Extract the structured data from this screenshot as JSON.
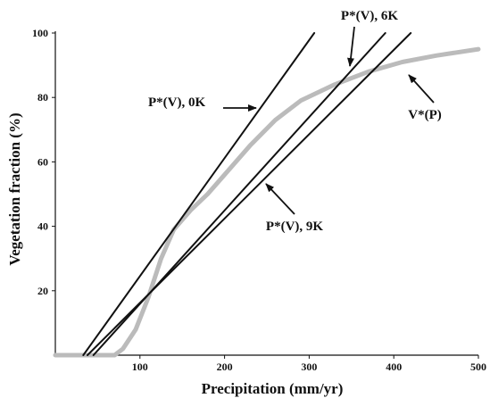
{
  "chart_data": {
    "type": "line",
    "xlabel": "Precipitation (mm/yr)",
    "ylabel": "Vegetation fraction (%)",
    "xlim": [
      0,
      500
    ],
    "ylim": [
      0,
      100
    ],
    "xticks": [
      "100",
      "200",
      "300",
      "400",
      "500"
    ],
    "yticks": [
      "20",
      "40",
      "60",
      "80",
      "100"
    ],
    "grid": false,
    "series": [
      {
        "name": "P*(V), 0K",
        "color": "#111111",
        "points": [
          [
            33,
            0
          ],
          [
            306,
            100
          ]
        ]
      },
      {
        "name": "P*(V), 6K",
        "color": "#111111",
        "points": [
          [
            45,
            0
          ],
          [
            390,
            100
          ]
        ]
      },
      {
        "name": "P*(V), 9K",
        "color": "#111111",
        "points": [
          [
            38,
            0
          ],
          [
            420,
            100
          ]
        ]
      },
      {
        "name": "V*(P)",
        "color": "#bbbbbb",
        "points": [
          [
            0,
            0
          ],
          [
            70,
            0
          ],
          [
            80,
            2
          ],
          [
            95,
            8
          ],
          [
            110,
            18
          ],
          [
            125,
            30
          ],
          [
            140,
            39
          ],
          [
            160,
            45
          ],
          [
            180,
            50
          ],
          [
            200,
            56
          ],
          [
            230,
            65
          ],
          [
            260,
            73
          ],
          [
            290,
            79
          ],
          [
            330,
            84
          ],
          [
            370,
            88
          ],
          [
            410,
            91
          ],
          [
            450,
            93
          ],
          [
            500,
            95
          ]
        ]
      }
    ],
    "annotations": [
      {
        "text": "P*(V), 0K"
      },
      {
        "text": "P*(V), 6K"
      },
      {
        "text": "P*(V), 9K"
      },
      {
        "text": "V*(P)"
      }
    ]
  }
}
